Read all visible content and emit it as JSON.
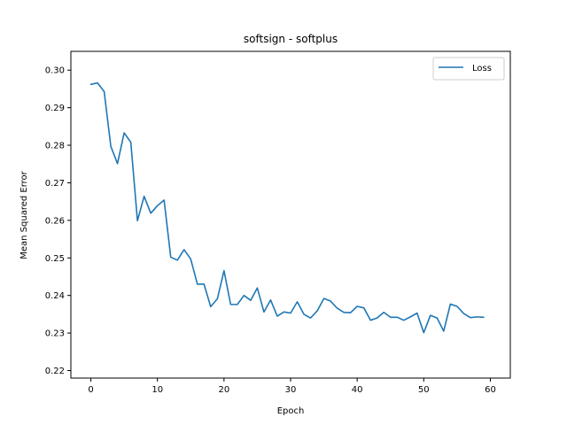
{
  "chart_data": {
    "type": "line",
    "title": "softsign - softplus",
    "xlabel": "Epoch",
    "ylabel": "Mean Squared Error",
    "xlim": [
      -3,
      63
    ],
    "ylim": [
      0.218,
      0.305
    ],
    "xticks": [
      0,
      10,
      20,
      30,
      40,
      50,
      60
    ],
    "yticks": [
      0.22,
      0.23,
      0.24,
      0.25,
      0.26,
      0.27,
      0.28,
      0.29,
      0.3
    ],
    "xtick_labels": [
      "0",
      "10",
      "20",
      "30",
      "40",
      "50",
      "60"
    ],
    "ytick_labels": [
      "0.22",
      "0.23",
      "0.24",
      "0.25",
      "0.26",
      "0.27",
      "0.28",
      "0.29",
      "0.30"
    ],
    "grid": false,
    "legend_position": "top-right",
    "series": [
      {
        "name": "Loss",
        "color": "#1f77b4",
        "x": [
          0,
          1,
          2,
          3,
          4,
          5,
          6,
          7,
          8,
          9,
          10,
          11,
          12,
          13,
          14,
          15,
          16,
          17,
          18,
          19,
          20,
          21,
          22,
          23,
          24,
          25,
          26,
          27,
          28,
          29,
          30,
          31,
          32,
          33,
          34,
          35,
          36,
          37,
          38,
          39,
          40,
          41,
          42,
          43,
          44,
          45,
          46,
          47,
          48,
          49,
          50,
          51,
          52,
          53,
          54,
          55,
          56,
          57,
          58,
          59
        ],
        "y": [
          0.2962,
          0.2966,
          0.2943,
          0.2797,
          0.2751,
          0.2833,
          0.2808,
          0.2599,
          0.2664,
          0.2619,
          0.2639,
          0.2654,
          0.2502,
          0.2494,
          0.2522,
          0.2497,
          0.243,
          0.243,
          0.237,
          0.2391,
          0.2466,
          0.2376,
          0.2376,
          0.24,
          0.2387,
          0.242,
          0.2356,
          0.2388,
          0.2345,
          0.2356,
          0.2353,
          0.2383,
          0.235,
          0.234,
          0.2359,
          0.2392,
          0.2385,
          0.2366,
          0.2355,
          0.2354,
          0.2371,
          0.2367,
          0.2334,
          0.234,
          0.2355,
          0.2342,
          0.2342,
          0.2334,
          0.2343,
          0.2353,
          0.2301,
          0.2347,
          0.234,
          0.2305,
          0.2377,
          0.2371,
          0.2352,
          0.2341,
          0.2343,
          0.2342
        ]
      }
    ]
  }
}
